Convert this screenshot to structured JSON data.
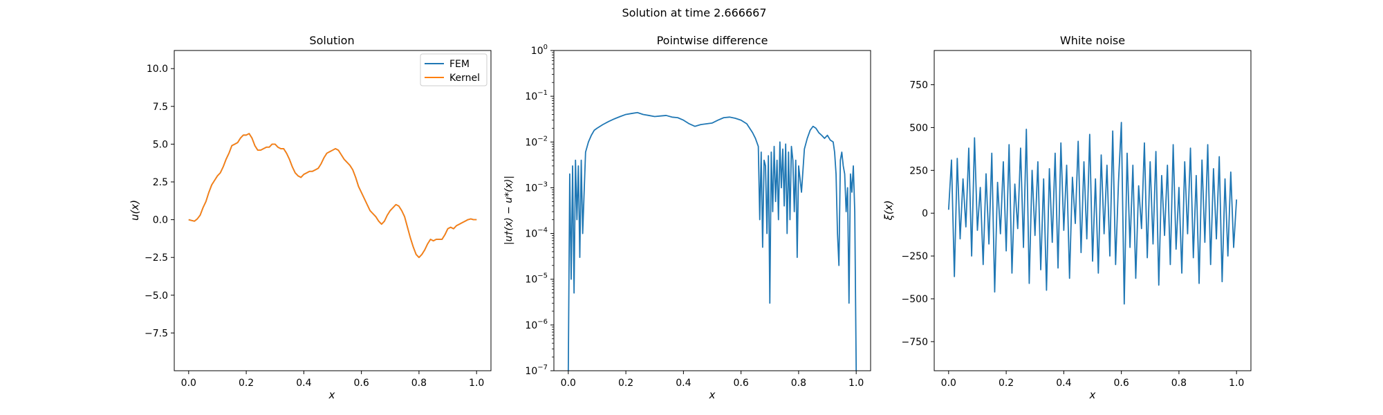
{
  "suptitle": "Solution at time 2.666667",
  "colors": {
    "fem": "#1f77b4",
    "kernel": "#ff7f0e",
    "axis": "#000000"
  },
  "panels": {
    "solution": {
      "title": "Solution",
      "xlabel": "x",
      "ylabel": "u(x)",
      "xticks": [
        "0.0",
        "0.2",
        "0.4",
        "0.6",
        "0.8",
        "1.0"
      ],
      "yticks": [
        "−7.5",
        "−5.0",
        "−2.5",
        "0.0",
        "2.5",
        "5.0",
        "7.5",
        "10.0"
      ],
      "legend": [
        "FEM",
        "Kernel"
      ]
    },
    "difference": {
      "title": "Pointwise difference",
      "xlabel": "x",
      "ylabel": "|u†(x) − u*(x)|",
      "xticks": [
        "0.0",
        "0.2",
        "0.4",
        "0.6",
        "0.8",
        "1.0"
      ],
      "ytick_exponents": [
        "−7",
        "−6",
        "−5",
        "−4",
        "−3",
        "−2",
        "−1",
        "0"
      ]
    },
    "noise": {
      "title": "White noise",
      "xlabel": "x",
      "ylabel": "ξ(x)",
      "xticks": [
        "0.0",
        "0.2",
        "0.4",
        "0.6",
        "0.8",
        "1.0"
      ],
      "yticks": [
        "−750",
        "−500",
        "−250",
        "0",
        "250",
        "500",
        "750"
      ]
    }
  },
  "chart_data": [
    {
      "type": "line",
      "title": "Solution",
      "xlabel": "x",
      "ylabel": "u(x)",
      "xlim": [
        -0.05,
        1.05
      ],
      "ylim": [
        -10,
        11.2
      ],
      "legend_position": "top-right",
      "x": [
        0.0,
        0.01,
        0.02,
        0.03,
        0.04,
        0.05,
        0.06,
        0.07,
        0.08,
        0.09,
        0.1,
        0.11,
        0.12,
        0.13,
        0.14,
        0.15,
        0.16,
        0.17,
        0.18,
        0.19,
        0.2,
        0.21,
        0.22,
        0.23,
        0.24,
        0.25,
        0.26,
        0.27,
        0.28,
        0.29,
        0.3,
        0.31,
        0.32,
        0.33,
        0.34,
        0.35,
        0.36,
        0.37,
        0.38,
        0.39,
        0.4,
        0.41,
        0.42,
        0.43,
        0.44,
        0.45,
        0.46,
        0.47,
        0.48,
        0.49,
        0.5,
        0.51,
        0.52,
        0.53,
        0.54,
        0.55,
        0.56,
        0.57,
        0.58,
        0.59,
        0.6,
        0.61,
        0.62,
        0.63,
        0.64,
        0.65,
        0.66,
        0.67,
        0.68,
        0.69,
        0.7,
        0.71,
        0.72,
        0.73,
        0.74,
        0.75,
        0.76,
        0.77,
        0.78,
        0.79,
        0.8,
        0.81,
        0.82,
        0.83,
        0.84,
        0.85,
        0.86,
        0.87,
        0.88,
        0.89,
        0.9,
        0.91,
        0.92,
        0.93,
        0.94,
        0.95,
        0.96,
        0.97,
        0.98,
        0.99,
        1.0
      ],
      "series": [
        {
          "name": "FEM",
          "values": [
            0.0,
            -0.05,
            -0.1,
            0.05,
            0.3,
            0.8,
            1.2,
            1.8,
            2.3,
            2.6,
            2.9,
            3.1,
            3.5,
            4.0,
            4.4,
            4.9,
            5.0,
            5.1,
            5.4,
            5.6,
            5.6,
            5.7,
            5.4,
            4.9,
            4.6,
            4.6,
            4.7,
            4.8,
            4.8,
            5.0,
            5.0,
            4.8,
            4.7,
            4.7,
            4.4,
            4.0,
            3.5,
            3.1,
            2.9,
            2.8,
            3.0,
            3.1,
            3.2,
            3.2,
            3.3,
            3.4,
            3.7,
            4.1,
            4.4,
            4.5,
            4.6,
            4.7,
            4.6,
            4.3,
            4.0,
            3.8,
            3.6,
            3.3,
            2.8,
            2.2,
            1.8,
            1.4,
            1.0,
            0.6,
            0.4,
            0.2,
            -0.1,
            -0.3,
            -0.1,
            0.3,
            0.6,
            0.8,
            1.0,
            0.9,
            0.6,
            0.2,
            -0.5,
            -1.2,
            -1.8,
            -2.3,
            -2.5,
            -2.3,
            -2.0,
            -1.6,
            -1.3,
            -1.4,
            -1.3,
            -1.3,
            -1.3,
            -1.0,
            -0.6,
            -0.5,
            -0.6,
            -0.4,
            -0.3,
            -0.2,
            -0.1,
            0.0,
            0.05,
            0.0,
            0.0
          ]
        },
        {
          "name": "Kernel",
          "values": [
            0.0,
            -0.05,
            -0.1,
            0.05,
            0.3,
            0.8,
            1.2,
            1.8,
            2.3,
            2.6,
            2.9,
            3.1,
            3.5,
            4.0,
            4.4,
            4.9,
            5.0,
            5.1,
            5.4,
            5.6,
            5.6,
            5.7,
            5.4,
            4.9,
            4.6,
            4.6,
            4.7,
            4.8,
            4.8,
            5.0,
            5.0,
            4.8,
            4.7,
            4.7,
            4.4,
            4.0,
            3.5,
            3.1,
            2.9,
            2.8,
            3.0,
            3.1,
            3.2,
            3.2,
            3.3,
            3.4,
            3.7,
            4.1,
            4.4,
            4.5,
            4.6,
            4.7,
            4.6,
            4.3,
            4.0,
            3.8,
            3.6,
            3.3,
            2.8,
            2.2,
            1.8,
            1.4,
            1.0,
            0.6,
            0.4,
            0.2,
            -0.1,
            -0.3,
            -0.1,
            0.3,
            0.6,
            0.8,
            1.0,
            0.9,
            0.6,
            0.2,
            -0.5,
            -1.2,
            -1.8,
            -2.3,
            -2.5,
            -2.3,
            -2.0,
            -1.6,
            -1.3,
            -1.4,
            -1.3,
            -1.3,
            -1.3,
            -1.0,
            -0.6,
            -0.5,
            -0.6,
            -0.4,
            -0.3,
            -0.2,
            -0.1,
            0.0,
            0.05,
            0.0,
            0.0
          ]
        }
      ]
    },
    {
      "type": "line",
      "title": "Pointwise difference",
      "xlabel": "x",
      "ylabel": "|u†(x) − u*(x)|",
      "yscale": "log",
      "xlim": [
        -0.05,
        1.05
      ],
      "ylim": [
        1e-07,
        1
      ],
      "x": [
        0.0,
        0.005,
        0.01,
        0.015,
        0.02,
        0.025,
        0.03,
        0.035,
        0.04,
        0.045,
        0.05,
        0.06,
        0.07,
        0.08,
        0.09,
        0.1,
        0.12,
        0.14,
        0.16,
        0.18,
        0.2,
        0.22,
        0.24,
        0.26,
        0.28,
        0.3,
        0.32,
        0.34,
        0.36,
        0.38,
        0.4,
        0.42,
        0.44,
        0.46,
        0.48,
        0.5,
        0.52,
        0.54,
        0.56,
        0.58,
        0.6,
        0.62,
        0.63,
        0.64,
        0.65,
        0.66,
        0.665,
        0.67,
        0.675,
        0.68,
        0.685,
        0.69,
        0.695,
        0.7,
        0.705,
        0.71,
        0.715,
        0.72,
        0.725,
        0.73,
        0.735,
        0.74,
        0.745,
        0.75,
        0.755,
        0.76,
        0.765,
        0.77,
        0.775,
        0.78,
        0.785,
        0.79,
        0.795,
        0.8,
        0.81,
        0.82,
        0.83,
        0.84,
        0.85,
        0.86,
        0.87,
        0.88,
        0.89,
        0.9,
        0.91,
        0.92,
        0.925,
        0.93,
        0.935,
        0.94,
        0.945,
        0.95,
        0.955,
        0.96,
        0.965,
        0.97,
        0.975,
        0.98,
        0.985,
        0.99,
        0.995,
        1.0
      ],
      "values": [
        1e-07,
        0.002,
        1e-05,
        0.003,
        5e-06,
        0.004,
        0.0002,
        0.003,
        3e-05,
        0.004,
        0.0001,
        0.006,
        0.01,
        0.014,
        0.018,
        0.02,
        0.024,
        0.028,
        0.032,
        0.036,
        0.04,
        0.042,
        0.044,
        0.04,
        0.038,
        0.036,
        0.037,
        0.038,
        0.035,
        0.034,
        0.03,
        0.025,
        0.022,
        0.024,
        0.025,
        0.026,
        0.03,
        0.034,
        0.035,
        0.033,
        0.03,
        0.025,
        0.02,
        0.016,
        0.012,
        0.008,
        0.0002,
        0.006,
        5e-05,
        0.004,
        0.003,
        0.0001,
        0.005,
        3e-06,
        0.006,
        0.0003,
        0.008,
        0.0005,
        0.004,
        0.0002,
        0.01,
        0.001,
        0.007,
        0.0004,
        0.009,
        0.0001,
        0.006,
        0.0002,
        0.008,
        0.004,
        0.0003,
        0.004,
        3e-05,
        0.003,
        0.0008,
        0.007,
        0.012,
        0.018,
        0.022,
        0.02,
        0.016,
        0.014,
        0.012,
        0.014,
        0.011,
        0.01,
        0.006,
        0.002,
        0.0001,
        2e-05,
        0.004,
        0.006,
        0.003,
        0.002,
        0.0003,
        0.001,
        3e-06,
        0.002,
        0.0008,
        0.003,
        0.0003,
        1e-07
      ]
    },
    {
      "type": "line",
      "title": "White noise",
      "xlabel": "x",
      "ylabel": "ξ(x)",
      "xlim": [
        -0.05,
        1.05
      ],
      "ylim": [
        -920,
        950
      ],
      "x": [
        0.0,
        0.01,
        0.02,
        0.03,
        0.04,
        0.05,
        0.06,
        0.07,
        0.08,
        0.09,
        0.1,
        0.11,
        0.12,
        0.13,
        0.14,
        0.15,
        0.16,
        0.17,
        0.18,
        0.19,
        0.2,
        0.21,
        0.22,
        0.23,
        0.24,
        0.25,
        0.26,
        0.27,
        0.28,
        0.29,
        0.3,
        0.31,
        0.32,
        0.33,
        0.34,
        0.35,
        0.36,
        0.37,
        0.38,
        0.39,
        0.4,
        0.41,
        0.42,
        0.43,
        0.44,
        0.45,
        0.46,
        0.47,
        0.48,
        0.49,
        0.5,
        0.51,
        0.52,
        0.53,
        0.54,
        0.55,
        0.56,
        0.57,
        0.58,
        0.59,
        0.6,
        0.61,
        0.62,
        0.63,
        0.64,
        0.65,
        0.66,
        0.67,
        0.68,
        0.69,
        0.7,
        0.71,
        0.72,
        0.73,
        0.74,
        0.75,
        0.76,
        0.77,
        0.78,
        0.79,
        0.8,
        0.81,
        0.82,
        0.83,
        0.84,
        0.85,
        0.86,
        0.87,
        0.88,
        0.89,
        0.9,
        0.91,
        0.92,
        0.93,
        0.94,
        0.95,
        0.96,
        0.97,
        0.98,
        0.99,
        1.0
      ],
      "values": [
        20,
        310,
        -370,
        320,
        -150,
        200,
        -80,
        380,
        -250,
        440,
        -100,
        150,
        -300,
        230,
        -180,
        350,
        -460,
        180,
        -120,
        300,
        -220,
        400,
        -350,
        170,
        -90,
        380,
        -200,
        490,
        -410,
        250,
        -130,
        300,
        -330,
        200,
        -450,
        260,
        -170,
        350,
        -320,
        410,
        -100,
        280,
        -380,
        210,
        -60,
        420,
        -230,
        300,
        -150,
        460,
        -280,
        200,
        -350,
        340,
        -120,
        280,
        -250,
        480,
        -300,
        180,
        530,
        -530,
        350,
        -200,
        280,
        -380,
        160,
        -90,
        410,
        -260,
        300,
        -180,
        360,
        -420,
        220,
        -130,
        280,
        -300,
        400,
        -210,
        150,
        -350,
        300,
        -120,
        380,
        -260,
        220,
        -410,
        310,
        -170,
        400,
        -300,
        260,
        -150,
        330,
        -400,
        200,
        -250,
        240,
        -200,
        80
      ]
    }
  ]
}
